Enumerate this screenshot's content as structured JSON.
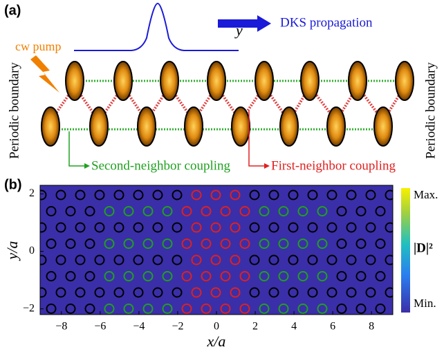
{
  "panel_a": {
    "label": "(a)",
    "direction_axis": "y",
    "propagation": "DKS propagation",
    "pump": "cw pump",
    "left_boundary": "Periodic boundary",
    "right_boundary": "Periodic boundary",
    "second_neighbor": "Second-neighbor coupling",
    "first_neighbor": "First-neighbor coupling"
  },
  "panel_b": {
    "label": "(b)",
    "x_label": "x/a",
    "y_label": "y/a",
    "colorbar_max": "Max.",
    "colorbar_min": "Min.",
    "colorbar_label": "|D|²",
    "xlim": [
      -9.1,
      9.1
    ],
    "ylim": [
      -2.2,
      2.3
    ],
    "xticks": [
      {
        "value": -8,
        "label": "−8"
      },
      {
        "value": -6,
        "label": "−6"
      },
      {
        "value": -4,
        "label": "−4"
      },
      {
        "value": -2,
        "label": "−2"
      },
      0,
      2,
      4,
      6,
      8
    ],
    "yticks": [
      {
        "value": -2,
        "label": "−2"
      },
      0,
      2
    ]
  }
}
